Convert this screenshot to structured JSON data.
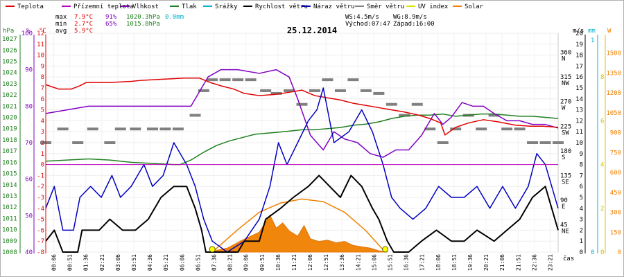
{
  "chart_data": {
    "type": "line",
    "title": "25.12.2014",
    "legend": [
      {
        "name": "Teplota",
        "color": "#e00000"
      },
      {
        "name": "Přízemní teplota",
        "color": "#c000c0"
      },
      {
        "name": "Vlhkost",
        "color": "#8000c0"
      },
      {
        "name": "Tlak",
        "color": "#208020"
      },
      {
        "name": "Srážky",
        "color": "#00b0d0"
      },
      {
        "name": "Rychlost větru",
        "color": "#000000"
      },
      {
        "name": "Náraz větru",
        "color": "#0000c0"
      },
      {
        "name": "Směr větru",
        "color": "#808080"
      },
      {
        "name": "UV index",
        "color": "#e0e000"
      },
      {
        "name": "Solar",
        "color": "#f08000"
      }
    ],
    "stats": {
      "max_label": "max",
      "min_label": "min",
      "avg_label": "avg",
      "max_temp": "7.9°C",
      "max_hum": "91%",
      "max_press": "1020.3hPa",
      "max_rain": "0.0mm",
      "min_temp": "2.7°C",
      "min_hum": "65%",
      "min_press": "1015.8hPa",
      "avg_temp": "5.9°C",
      "ws": "WS:4.5m/s",
      "wg": "WG:8.9m/s",
      "sunrise": "Východ:07:47",
      "sunset": "Západ:16:00"
    },
    "axes": {
      "hpa_unit": "hPa",
      "pct_unit": "%",
      "c_unit": "°C",
      "ms_unit": "m/s",
      "mm_unit": "mm",
      "w_unit": "W",
      "time_unit": "čas",
      "hpa_ticks": [
        "1027",
        "1026",
        "1025",
        "1024",
        "1023",
        "1022",
        "1021",
        "1020",
        "1019",
        "1018",
        "1017",
        "1016",
        "1015",
        "1014",
        "1013",
        "1012",
        "1011",
        "1010",
        "1009",
        "1008"
      ],
      "pct_ticks": [
        "100",
        "90",
        "80",
        "70",
        "60",
        "50",
        "40"
      ],
      "c_ticks": [
        "12",
        "11",
        "10",
        "9",
        "8",
        "7",
        "6",
        "5",
        "4",
        "3",
        "2",
        "1",
        "0",
        "-1",
        "-2",
        "-3",
        "-4",
        "-5",
        "-6",
        "-7",
        "-8"
      ],
      "dir_ticks": [
        "360 N",
        "315 NW",
        "270 W",
        "225 SW",
        "180 S",
        "135 SE",
        "90 E",
        "45 NE"
      ],
      "ms_ticks": [
        "20",
        "19",
        "18",
        "17",
        "16",
        "15",
        "14",
        "13",
        "12",
        "11",
        "10",
        "9",
        "8",
        "7",
        "6",
        "5",
        "4",
        "3",
        "2",
        "1",
        "0"
      ],
      "mm_ticks": [
        "1",
        "0"
      ],
      "uv_ticks": [
        "8",
        "6",
        "4",
        "2",
        "0"
      ],
      "w_ticks": [
        "1500",
        "1350",
        "1200",
        "1050",
        "900",
        "750",
        "600",
        "450",
        "300",
        "150",
        "0"
      ],
      "time_ticks": [
        "00:06",
        "00:51",
        "01:36",
        "02:21",
        "03:06",
        "03:51",
        "04:36",
        "05:21",
        "06:06",
        "06:51",
        "07:36",
        "08:21",
        "09:06",
        "09:51",
        "10:36",
        "11:21",
        "12:06",
        "12:51",
        "13:36",
        "14:21",
        "15:06",
        "15:51",
        "16:36",
        "17:21",
        "18:06",
        "18:51",
        "19:36",
        "20:21",
        "21:06",
        "21:51",
        "22:36",
        "23:21"
      ]
    },
    "time_range_hours": [
      0,
      24
    ],
    "series": {
      "temperature_c": [
        [
          0,
          7.3
        ],
        [
          0.6,
          6.9
        ],
        [
          1.2,
          6.9
        ],
        [
          1.6,
          7.2
        ],
        [
          1.9,
          7.5
        ],
        [
          3,
          7.5
        ],
        [
          4,
          7.6
        ],
        [
          4.5,
          7.7
        ],
        [
          5.5,
          7.8
        ],
        [
          6.5,
          7.9
        ],
        [
          7.2,
          7.9
        ],
        [
          7.7,
          7.5
        ],
        [
          8.2,
          7.2
        ],
        [
          8.8,
          6.9
        ],
        [
          9.3,
          6.5
        ],
        [
          10,
          6.3
        ],
        [
          10.7,
          6.4
        ],
        [
          11.4,
          6.6
        ],
        [
          12,
          6.8
        ],
        [
          12.6,
          6.3
        ],
        [
          13.2,
          6.1
        ],
        [
          13.8,
          5.9
        ],
        [
          14.4,
          5.6
        ],
        [
          15,
          5.4
        ],
        [
          15.6,
          5.2
        ],
        [
          16.2,
          5.0
        ],
        [
          16.8,
          4.8
        ],
        [
          17.5,
          4.5
        ],
        [
          18,
          4.2
        ],
        [
          18.5,
          3.8
        ],
        [
          18.7,
          2.7
        ],
        [
          19.2,
          3.4
        ],
        [
          19.8,
          3.8
        ],
        [
          20.5,
          4.1
        ],
        [
          21.2,
          3.9
        ],
        [
          22,
          3.6
        ],
        [
          22.7,
          3.5
        ],
        [
          23.3,
          3.5
        ],
        [
          24,
          3.4
        ]
      ],
      "humidity_pct": [
        [
          0,
          78
        ],
        [
          1,
          79
        ],
        [
          2,
          80
        ],
        [
          3,
          80
        ],
        [
          4,
          80
        ],
        [
          5,
          80
        ],
        [
          6,
          80
        ],
        [
          6.8,
          80
        ],
        [
          7.3,
          85
        ],
        [
          7.6,
          88
        ],
        [
          8.2,
          90
        ],
        [
          9,
          90
        ],
        [
          10,
          89
        ],
        [
          10.8,
          90
        ],
        [
          11.4,
          88
        ],
        [
          11.8,
          82
        ],
        [
          12.4,
          72
        ],
        [
          13,
          68
        ],
        [
          13.5,
          73
        ],
        [
          14,
          71
        ],
        [
          14.6,
          70
        ],
        [
          15.2,
          67
        ],
        [
          15.8,
          66
        ],
        [
          16.4,
          68
        ],
        [
          17,
          68
        ],
        [
          17.6,
          72
        ],
        [
          18.2,
          78
        ],
        [
          18.6,
          75
        ],
        [
          19,
          77
        ],
        [
          19.5,
          81
        ],
        [
          20,
          80
        ],
        [
          20.5,
          80
        ],
        [
          21,
          78
        ],
        [
          21.6,
          76
        ],
        [
          22.2,
          76
        ],
        [
          22.8,
          75
        ],
        [
          23.4,
          75
        ],
        [
          24,
          74
        ]
      ],
      "pressure_hpa": [
        [
          0,
          1016.1
        ],
        [
          1,
          1016.2
        ],
        [
          2,
          1016.3
        ],
        [
          3,
          1016.2
        ],
        [
          4,
          1016.0
        ],
        [
          5,
          1015.9
        ],
        [
          6,
          1015.8
        ],
        [
          6.3,
          1015.8
        ],
        [
          6.8,
          1016.2
        ],
        [
          7.4,
          1016.9
        ],
        [
          8,
          1017.5
        ],
        [
          8.6,
          1017.9
        ],
        [
          9.2,
          1018.2
        ],
        [
          9.8,
          1018.5
        ],
        [
          10.4,
          1018.6
        ],
        [
          11,
          1018.7
        ],
        [
          11.5,
          1018.8
        ],
        [
          12,
          1018.9
        ],
        [
          12.6,
          1018.9
        ],
        [
          13.2,
          1019.0
        ],
        [
          13.8,
          1019.1
        ],
        [
          14.4,
          1019.3
        ],
        [
          15,
          1019.4
        ],
        [
          15.6,
          1019.6
        ],
        [
          16.2,
          1019.9
        ],
        [
          16.8,
          1020.1
        ],
        [
          17.4,
          1020.2
        ],
        [
          18,
          1020.2
        ],
        [
          18.6,
          1020.3
        ],
        [
          19.2,
          1020.1
        ],
        [
          19.8,
          1020.2
        ],
        [
          20.4,
          1020.3
        ],
        [
          21,
          1020.3
        ],
        [
          21.6,
          1020.2
        ],
        [
          22.2,
          1020.1
        ],
        [
          22.8,
          1020.1
        ],
        [
          23.4,
          1020.0
        ],
        [
          24,
          1019.9
        ]
      ],
      "wind_speed_ms": [
        [
          0,
          1
        ],
        [
          0.4,
          2
        ],
        [
          0.8,
          0
        ],
        [
          1.5,
          0
        ],
        [
          1.7,
          2
        ],
        [
          2.5,
          2
        ],
        [
          3,
          3
        ],
        [
          3.6,
          2
        ],
        [
          4.2,
          2
        ],
        [
          4.8,
          3
        ],
        [
          5.4,
          5
        ],
        [
          6,
          6
        ],
        [
          6.6,
          6
        ],
        [
          7,
          4
        ],
        [
          7.3,
          2
        ],
        [
          7.5,
          0
        ],
        [
          9,
          0
        ],
        [
          9.3,
          1
        ],
        [
          10,
          1
        ],
        [
          10.3,
          3
        ],
        [
          11,
          4
        ],
        [
          11.6,
          5
        ],
        [
          12.3,
          6
        ],
        [
          12.8,
          7
        ],
        [
          13.3,
          6
        ],
        [
          13.8,
          5
        ],
        [
          14.3,
          7
        ],
        [
          14.8,
          6
        ],
        [
          15.3,
          4
        ],
        [
          15.6,
          3
        ],
        [
          16,
          1
        ],
        [
          16.3,
          0
        ],
        [
          16.6,
          0
        ],
        [
          17,
          0
        ],
        [
          17.6,
          1
        ],
        [
          18.3,
          2
        ],
        [
          19,
          1
        ],
        [
          19.6,
          1
        ],
        [
          20.2,
          2
        ],
        [
          21,
          1
        ],
        [
          21.6,
          2
        ],
        [
          22.2,
          3
        ],
        [
          22.8,
          5
        ],
        [
          23.4,
          6
        ],
        [
          24,
          2
        ]
      ],
      "wind_gust_ms": [
        [
          0,
          4
        ],
        [
          0.4,
          6
        ],
        [
          0.8,
          2
        ],
        [
          1.3,
          2
        ],
        [
          1.6,
          5
        ],
        [
          2.1,
          6
        ],
        [
          2.6,
          5
        ],
        [
          3.1,
          7
        ],
        [
          3.5,
          5
        ],
        [
          4,
          6
        ],
        [
          4.6,
          8
        ],
        [
          5,
          6
        ],
        [
          5.5,
          7
        ],
        [
          6,
          10
        ],
        [
          6.6,
          8
        ],
        [
          7,
          6
        ],
        [
          7.4,
          3
        ],
        [
          7.8,
          1
        ],
        [
          8.5,
          0
        ],
        [
          9.3,
          1
        ],
        [
          10,
          3
        ],
        [
          10.5,
          6
        ],
        [
          10.9,
          10
        ],
        [
          11.3,
          8
        ],
        [
          11.8,
          10
        ],
        [
          12.3,
          12
        ],
        [
          12.7,
          13
        ],
        [
          13,
          15
        ],
        [
          13.5,
          10
        ],
        [
          14.2,
          11
        ],
        [
          14.8,
          13
        ],
        [
          15.3,
          11
        ],
        [
          15.8,
          8
        ],
        [
          16.2,
          5
        ],
        [
          16.6,
          4
        ],
        [
          17.2,
          3
        ],
        [
          17.8,
          4
        ],
        [
          18.4,
          6
        ],
        [
          19,
          5
        ],
        [
          19.6,
          5
        ],
        [
          20.2,
          6
        ],
        [
          20.8,
          4
        ],
        [
          21.4,
          6
        ],
        [
          22,
          4
        ],
        [
          22.6,
          6
        ],
        [
          23,
          9
        ],
        [
          23.4,
          8
        ],
        [
          24,
          4
        ]
      ],
      "wind_dir_deg": [
        [
          0,
          200
        ],
        [
          0.8,
          225
        ],
        [
          1.5,
          200
        ],
        [
          2.2,
          225
        ],
        [
          3,
          200
        ],
        [
          3.5,
          225
        ],
        [
          4.2,
          225
        ],
        [
          5,
          225
        ],
        [
          5.6,
          225
        ],
        [
          6.2,
          225
        ],
        [
          7,
          250
        ],
        [
          7.4,
          295
        ],
        [
          7.8,
          315
        ],
        [
          8.4,
          315
        ],
        [
          9,
          315
        ],
        [
          9.6,
          315
        ],
        [
          10.3,
          295
        ],
        [
          10.8,
          290
        ],
        [
          11.4,
          295
        ],
        [
          12,
          270
        ],
        [
          12.6,
          295
        ],
        [
          13.2,
          315
        ],
        [
          13.8,
          295
        ],
        [
          14.4,
          315
        ],
        [
          15,
          295
        ],
        [
          15.6,
          290
        ],
        [
          16.2,
          270
        ],
        [
          16.8,
          250
        ],
        [
          17.4,
          270
        ],
        [
          18,
          225
        ],
        [
          18.6,
          200
        ],
        [
          19.2,
          225
        ],
        [
          19.8,
          250
        ],
        [
          20.4,
          225
        ],
        [
          21,
          250
        ],
        [
          21.6,
          225
        ],
        [
          22.2,
          225
        ],
        [
          22.8,
          200
        ],
        [
          23.4,
          200
        ],
        [
          24,
          200
        ]
      ],
      "solar_w": [
        [
          7.6,
          0
        ],
        [
          8.5,
          30
        ],
        [
          9.2,
          90
        ],
        [
          10,
          150
        ],
        [
          10.5,
          280
        ],
        [
          10.8,
          180
        ],
        [
          11.1,
          220
        ],
        [
          11.4,
          160
        ],
        [
          11.8,
          120
        ],
        [
          12.1,
          200
        ],
        [
          12.4,
          100
        ],
        [
          12.8,
          80
        ],
        [
          13.2,
          90
        ],
        [
          13.6,
          70
        ],
        [
          14,
          80
        ],
        [
          14.4,
          50
        ],
        [
          14.8,
          40
        ],
        [
          15.2,
          30
        ],
        [
          15.6,
          10
        ],
        [
          16,
          0
        ]
      ],
      "solar_max_w": [
        [
          7.8,
          0
        ],
        [
          9,
          170
        ],
        [
          10,
          300
        ],
        [
          11,
          370
        ],
        [
          12,
          400
        ],
        [
          13,
          380
        ],
        [
          14,
          300
        ],
        [
          15,
          160
        ],
        [
          15.9,
          0
        ]
      ]
    }
  }
}
